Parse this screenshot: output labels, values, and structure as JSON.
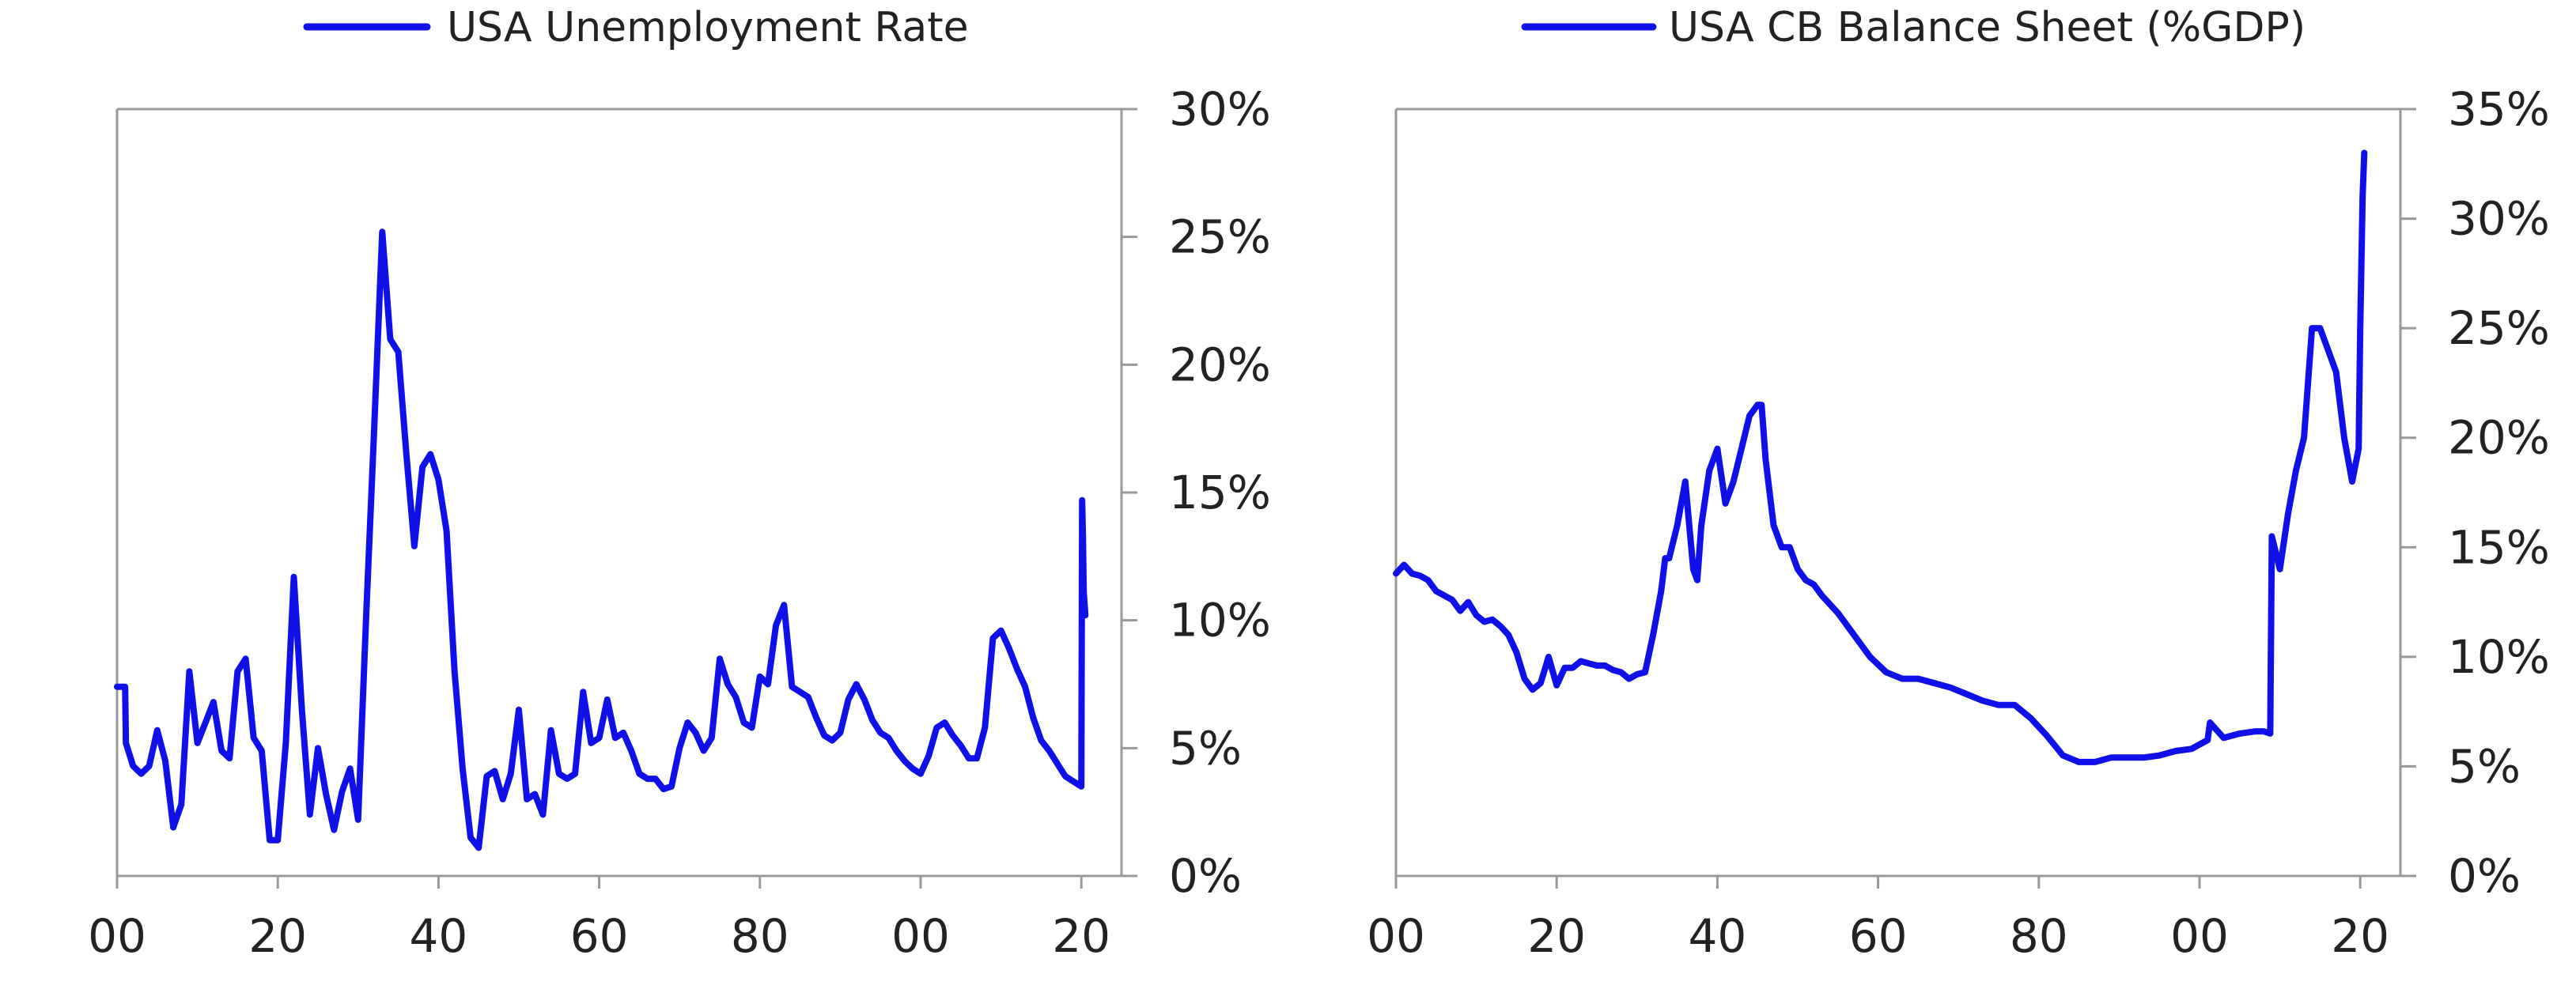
{
  "chart_data": [
    {
      "type": "line",
      "title": "",
      "xlabel": "",
      "ylabel": "",
      "xlim": [
        1900,
        2025
      ],
      "ylim": [
        0,
        30
      ],
      "grid": false,
      "legend_placement": "top-center",
      "x_tick_values": [
        1900,
        1920,
        1940,
        1960,
        1980,
        2000,
        2020
      ],
      "x_tick_labels": [
        "00",
        "20",
        "40",
        "60",
        "80",
        "00",
        "20"
      ],
      "y_tick_values": [
        0,
        5,
        10,
        15,
        20,
        25,
        30
      ],
      "y_tick_labels": [
        "0%",
        "5%",
        "10%",
        "15%",
        "20%",
        "25%",
        "30%"
      ],
      "series": [
        {
          "name": "USA Unemployment Rate",
          "color": "#1010e8",
          "x": [
            1900,
            1901,
            1901.1,
            1902,
            1903,
            1904,
            1905,
            1906,
            1907,
            1908,
            1909,
            1910,
            1911,
            1912,
            1913,
            1914,
            1915,
            1916,
            1917,
            1918,
            1919,
            1920,
            1921,
            1922,
            1923,
            1924,
            1925,
            1926,
            1927,
            1928,
            1929,
            1930,
            1931,
            1932,
            1933,
            1934,
            1935,
            1936,
            1937,
            1938,
            1939,
            1940,
            1941,
            1942,
            1943,
            1944,
            1945,
            1946,
            1947,
            1948,
            1949,
            1950,
            1951,
            1952,
            1953,
            1954,
            1955,
            1956,
            1957,
            1958,
            1959,
            1960,
            1961,
            1962,
            1963,
            1964,
            1965,
            1966,
            1967,
            1968,
            1969,
            1970,
            1971,
            1972,
            1973,
            1974,
            1975,
            1976,
            1977,
            1978,
            1979,
            1980,
            1981,
            1982,
            1983,
            1984,
            1985,
            1986,
            1987,
            1988,
            1989,
            1990,
            1991,
            1992,
            1993,
            1994,
            1995,
            1996,
            1997,
            1998,
            1999,
            2000,
            2001,
            2002,
            2003,
            2004,
            2005,
            2006,
            2007,
            2008,
            2009,
            2010,
            2011,
            2012,
            2013,
            2014,
            2015,
            2016,
            2017,
            2018,
            2019,
            2020,
            2020.1,
            2020.2,
            2020.3,
            2020.5
          ],
          "y": [
            7.4,
            7.4,
            5.2,
            4.3,
            4.0,
            4.3,
            5.7,
            4.5,
            1.9,
            2.8,
            8.0,
            5.2,
            6.0,
            6.8,
            4.9,
            4.6,
            8.0,
            8.5,
            5.4,
            4.9,
            1.4,
            1.4,
            5.2,
            11.7,
            6.5,
            2.4,
            5.0,
            3.2,
            1.8,
            3.3,
            4.2,
            2.2,
            10.2,
            17.5,
            25.2,
            21.0,
            20.5,
            16.5,
            12.9,
            16.0,
            16.5,
            15.5,
            13.5,
            8.0,
            4.2,
            1.5,
            1.1,
            3.9,
            4.1,
            3.0,
            4.0,
            6.5,
            3.0,
            3.2,
            2.4,
            5.7,
            4.0,
            3.8,
            4.0,
            7.2,
            5.2,
            5.4,
            6.9,
            5.4,
            5.6,
            4.9,
            4.0,
            3.8,
            3.8,
            3.4,
            3.5,
            5.0,
            6.0,
            5.6,
            4.9,
            5.4,
            8.5,
            7.5,
            7.0,
            6.0,
            5.8,
            7.8,
            7.5,
            9.8,
            10.6,
            7.4,
            7.2,
            7.0,
            6.2,
            5.5,
            5.3,
            5.6,
            6.9,
            7.5,
            6.9,
            6.1,
            5.6,
            5.4,
            4.9,
            4.5,
            4.2,
            4.0,
            4.7,
            5.8,
            6.0,
            5.5,
            5.1,
            4.6,
            4.6,
            5.8,
            9.3,
            9.6,
            8.9,
            8.1,
            7.4,
            6.2,
            5.3,
            4.9,
            4.4,
            3.9,
            3.7,
            3.5,
            14.7,
            13.3,
            11.1,
            10.2
          ]
        }
      ]
    },
    {
      "type": "line",
      "title": "",
      "xlabel": "",
      "ylabel": "",
      "xlim": [
        1900,
        2025
      ],
      "ylim": [
        0,
        35
      ],
      "grid": false,
      "legend_placement": "top-center",
      "x_tick_values": [
        1900,
        1920,
        1940,
        1960,
        1980,
        2000,
        2020
      ],
      "x_tick_labels": [
        "00",
        "20",
        "40",
        "60",
        "80",
        "00",
        "20"
      ],
      "y_tick_values": [
        0,
        5,
        10,
        15,
        20,
        25,
        30,
        35
      ],
      "y_tick_labels": [
        "0%",
        "5%",
        "10%",
        "15%",
        "20%",
        "25%",
        "30%",
        "35%"
      ],
      "series": [
        {
          "name": "USA CB Balance Sheet (%GDP)",
          "color": "#1010e8",
          "x": [
            1900,
            1901,
            1902,
            1903,
            1904,
            1905,
            1906,
            1907,
            1908,
            1909,
            1910,
            1911,
            1912,
            1913,
            1914,
            1915,
            1916,
            1917,
            1918,
            1919,
            1920,
            1921,
            1922,
            1923,
            1924,
            1925,
            1926,
            1927,
            1928,
            1929,
            1930,
            1931,
            1932,
            1933,
            1933.5,
            1934,
            1935,
            1936,
            1937,
            1937.5,
            1938,
            1939,
            1940,
            1941,
            1942,
            1943,
            1944,
            1945,
            1945.5,
            1946,
            1947,
            1948,
            1949,
            1950,
            1951,
            1952,
            1953,
            1955,
            1957,
            1959,
            1961,
            1963,
            1965,
            1967,
            1969,
            1971,
            1973,
            1975,
            1977,
            1979,
            1981,
            1983,
            1985,
            1987,
            1989,
            1991,
            1993,
            1995,
            1997,
            1999,
            2001,
            2001.3,
            2003,
            2005,
            2007,
            2008,
            2008.8,
            2009,
            2010,
            2011,
            2012,
            2013,
            2014,
            2015,
            2016,
            2017,
            2018,
            2019,
            2019.8,
            2020,
            2020.3,
            2020.5
          ],
          "y": [
            13.8,
            14.2,
            13.8,
            13.7,
            13.5,
            13.0,
            12.8,
            12.6,
            12.1,
            12.5,
            11.9,
            11.6,
            11.7,
            11.4,
            11.0,
            10.2,
            9.0,
            8.5,
            8.8,
            10.0,
            8.7,
            9.5,
            9.5,
            9.8,
            9.7,
            9.6,
            9.6,
            9.4,
            9.3,
            9.0,
            9.2,
            9.3,
            11.0,
            13.0,
            14.5,
            14.5,
            16.0,
            18.0,
            14.0,
            13.5,
            16.0,
            18.5,
            19.5,
            17.0,
            18.0,
            19.5,
            21.0,
            21.5,
            21.5,
            19.0,
            16.0,
            15.0,
            15.0,
            14.0,
            13.5,
            13.3,
            12.8,
            12.0,
            11.0,
            10.0,
            9.3,
            9.0,
            9.0,
            8.8,
            8.6,
            8.3,
            8.0,
            7.8,
            7.8,
            7.2,
            6.4,
            5.5,
            5.2,
            5.2,
            5.4,
            5.4,
            5.4,
            5.5,
            5.7,
            5.8,
            6.2,
            7.0,
            6.3,
            6.5,
            6.6,
            6.6,
            6.5,
            15.5,
            14.0,
            16.5,
            18.5,
            20.0,
            25.0,
            25.0,
            24.0,
            23.0,
            20.0,
            18.0,
            19.5,
            25.0,
            31.0,
            33.0
          ]
        }
      ]
    }
  ]
}
